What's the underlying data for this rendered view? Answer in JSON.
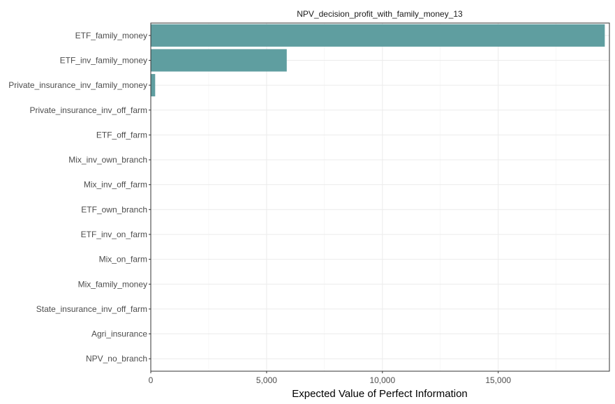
{
  "chart_data": {
    "type": "bar",
    "orientation": "horizontal",
    "title": "NPV_decision_profit_with_family_money_13",
    "xlabel": "Expected Value of Perfect Information",
    "ylabel": "",
    "categories": [
      "ETF_family_money",
      "ETF_inv_family_money",
      "Private_insurance_inv_family_money",
      "Private_insurance_inv_off_farm",
      "ETF_off_farm",
      "Mix_inv_own_branch",
      "Mix_inv_off_farm",
      "ETF_own_branch",
      "ETF_inv_on_farm",
      "Mix_on_farm",
      "Mix_family_money",
      "State_insurance_inv_off_farm",
      "Agri_insurance",
      "NPV_no_branch"
    ],
    "values": [
      19600,
      5870,
      190,
      0,
      0,
      0,
      0,
      0,
      0,
      0,
      0,
      0,
      0,
      0
    ],
    "xlim": [
      0,
      19800
    ],
    "xticks": [
      0,
      5000,
      10000,
      15000
    ],
    "xtick_labels": [
      "0",
      "5,000",
      "10,000",
      "15,000"
    ],
    "grid": true,
    "legend": "none",
    "bar_color": "#5f9ea0"
  }
}
